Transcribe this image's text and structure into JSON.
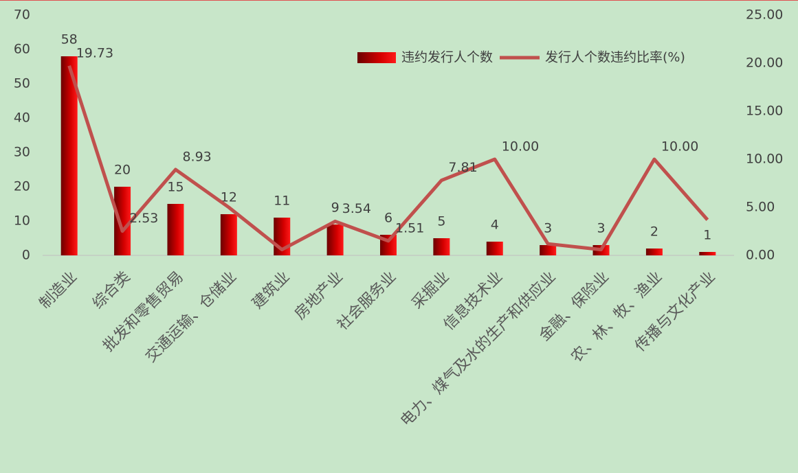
{
  "chart_data": {
    "type": "bar_line",
    "categories": [
      "制造业",
      "综合类",
      "批发和零售贸易",
      "交通运输、仓储业",
      "建筑业",
      "房地产业",
      "社会服务业",
      "采掘业",
      "信息技术业",
      "电力、煤气及水的生产和供应业",
      "金融、保险业",
      "农、林、牧、渔业",
      "传播与文化产业"
    ],
    "series": [
      {
        "name": "违约发行人个数",
        "color": "#c00000",
        "values": [
          58,
          20,
          15,
          12,
          11,
          9,
          6,
          5,
          4,
          3,
          3,
          2,
          1
        ]
      },
      {
        "name": "发行人个数违约比率(%)",
        "color": "#c0504d",
        "axis": "y2",
        "values": [
          19.73,
          2.53,
          8.93,
          5.0,
          0.6,
          3.54,
          1.51,
          7.81,
          10.0,
          1.2,
          0.6,
          10.0,
          3.7
        ],
        "value_labels": [
          "19.73",
          "2.53",
          "8.93",
          null,
          null,
          "3.54",
          "1.51",
          "7.81",
          "10.00",
          null,
          null,
          "10.00",
          null
        ]
      }
    ],
    "ylim": [
      0,
      70
    ],
    "yticks": [
      0,
      10,
      20,
      30,
      40,
      50,
      60,
      70
    ],
    "y2lim": [
      0,
      25
    ],
    "y2ticks": [
      {
        "value": 0,
        "label": "0.00"
      },
      {
        "value": 5,
        "label": "5.00"
      },
      {
        "value": 10,
        "label": "10.00"
      },
      {
        "value": 15,
        "label": "15.00"
      },
      {
        "value": 20,
        "label": "20.00"
      },
      {
        "value": 25,
        "label": "25.00"
      }
    ],
    "legend": "top-right",
    "grid": false
  }
}
